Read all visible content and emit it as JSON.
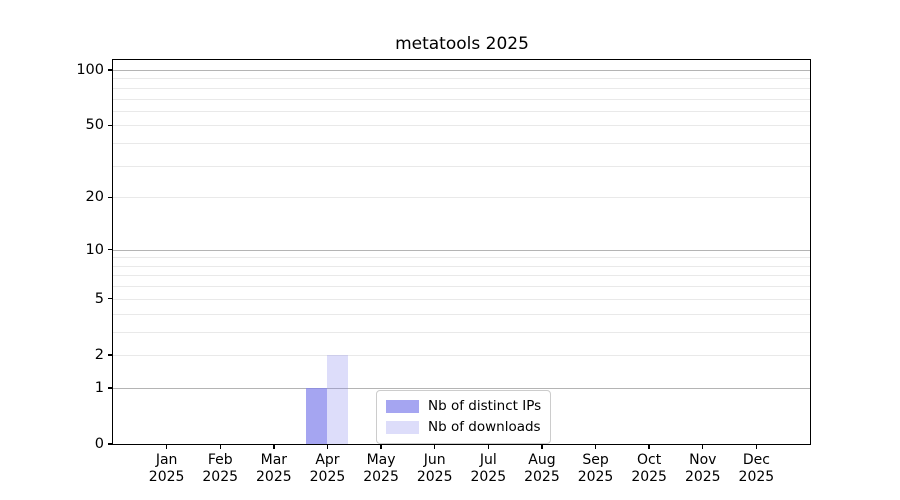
{
  "title": "metatools 2025",
  "chart_data": {
    "type": "bar",
    "title": "metatools 2025",
    "x_months": [
      "Jan",
      "Feb",
      "Mar",
      "Apr",
      "May",
      "Jun",
      "Jul",
      "Aug",
      "Sep",
      "Oct",
      "Nov",
      "Dec"
    ],
    "x_year": "2025",
    "categories": [
      "Jan 2025",
      "Feb 2025",
      "Mar 2025",
      "Apr 2025",
      "May 2025",
      "Jun 2025",
      "Jul 2025",
      "Aug 2025",
      "Sep 2025",
      "Oct 2025",
      "Nov 2025",
      "Dec 2025"
    ],
    "series": [
      {
        "name": "Nb of distinct IPs",
        "color": "#8282eb",
        "alpha": 0.72,
        "values": [
          0,
          0,
          0,
          1,
          0,
          0,
          0,
          0,
          0,
          0,
          0,
          0
        ]
      },
      {
        "name": "Nb of downloads",
        "color": "#8282eb",
        "alpha": 0.27,
        "values": [
          0,
          0,
          0,
          2,
          0,
          0,
          0,
          0,
          0,
          0,
          0,
          0
        ]
      }
    ],
    "yscale": "log1p",
    "ylim": [
      0,
      113.3
    ],
    "y_tick_labels": [
      0,
      1,
      2,
      5,
      10,
      20,
      50,
      100
    ],
    "y_major_gridlines": [
      1,
      10,
      100
    ],
    "y_minor_gridlines": [
      2,
      3,
      4,
      5,
      6,
      7,
      8,
      9,
      20,
      30,
      40,
      50,
      60,
      70,
      80,
      90
    ],
    "grid": "horizontal",
    "legend_position": "lower center inside"
  },
  "colors": {
    "background": "#ffffff",
    "axis": "#000000",
    "text": "#000000",
    "grid_major": "#b4b4b4",
    "grid_minor": "#e9e9e9",
    "legend_border": "#cccccc",
    "bar_distinct_ips": "#aaaaf0",
    "bar_downloads": "#dedef8"
  }
}
